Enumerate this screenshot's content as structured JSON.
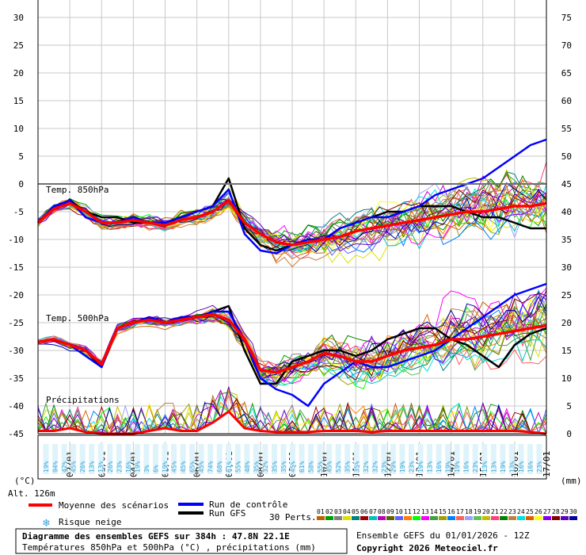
{
  "chart_data": {
    "type": "line",
    "title": "Diagramme des ensembles GEFS sur 384h : 47.8N 22.1E",
    "subtitle": "Températures 850hPa et 500hPa (°C) , précipitations (mm)",
    "run_info": "Ensemble GEFS du 01/01/2026 - 12Z",
    "copyright": "Copyright 2026 Meteociel.fr",
    "altitude": "Alt. 126m",
    "left_unit": "(°C)",
    "right_unit": "(mm)",
    "left_ticks": [
      "30",
      "25",
      "20",
      "15",
      "10",
      "5",
      "0",
      "-5",
      "-10",
      "-15",
      "-20",
      "-25",
      "-30",
      "-35",
      "-40",
      "-45"
    ],
    "right_ticks": [
      "75",
      "70",
      "65",
      "60",
      "55",
      "50",
      "45",
      "40",
      "35",
      "30",
      "25",
      "20",
      "15",
      "10",
      "5",
      "0"
    ],
    "x_ticks": [
      "02/01",
      "03/01",
      "04/01",
      "05/01",
      "06/01",
      "07/01",
      "08/01",
      "09/01",
      "10/01",
      "11/01",
      "12/01",
      "13/01",
      "14/01",
      "15/01",
      "16/01",
      "17/01"
    ],
    "panel_labels": {
      "t850": "Temp. 850hPa",
      "t500": "Temp. 500hPa",
      "precip": "Précipitations"
    },
    "legend": {
      "mean": "Moyenne des scénarios",
      "control": "Run de contrôle",
      "gfs": "Run GFS",
      "perts": "30 Perts.",
      "snow": "Risque neige"
    },
    "pert_labels": [
      "01",
      "02",
      "03",
      "04",
      "05",
      "06",
      "07",
      "08",
      "09",
      "10",
      "11",
      "12",
      "13",
      "14",
      "15",
      "16",
      "17",
      "18",
      "19",
      "20",
      "21",
      "22",
      "23",
      "24",
      "25",
      "26",
      "27",
      "28",
      "29",
      "30"
    ],
    "pert_colors": [
      "#c06000",
      "#00a000",
      "#808080",
      "#e0e000",
      "#008080",
      "#a00000",
      "#00c0c0",
      "#c000c0",
      "#606000",
      "#6060ff",
      "#ff8000",
      "#00ff00",
      "#ff00ff",
      "#40a040",
      "#a0a000",
      "#0080ff",
      "#ff6060",
      "#a0a0ff",
      "#60c060",
      "#c0c000",
      "#ff4080",
      "#008000",
      "#c08040",
      "#00e0e0",
      "#e06000",
      "#ffff00",
      "#8000ff",
      "#800000",
      "#6000c0",
      "#0000a0"
    ],
    "colors": {
      "mean": "#ff0000",
      "control": "#0000ff",
      "gfs": "#000000",
      "snow": "#3aa8d8"
    },
    "snow_risk_pct": [
      "19%",
      "94%",
      "42%",
      "45%",
      "26%",
      "13%",
      "13%",
      "26%",
      "23%",
      "16%",
      "19%",
      "3%",
      "6%",
      "19%",
      "45%",
      "45%",
      "65%",
      "45%",
      "74%",
      "68%",
      "61%",
      "55%",
      "48%",
      "35%",
      "32%",
      "35%",
      "35%",
      "45%",
      "61%",
      "58%",
      "55%",
      "45%",
      "52%",
      "35%",
      "35%",
      "32%",
      "32%",
      "23%",
      "29%",
      "19%",
      "23%",
      "19%",
      "13%",
      "16%",
      "19%",
      "19%",
      "16%",
      "23%",
      "13%",
      "13%",
      "19%",
      "13%",
      "16%",
      "16%",
      "23%"
    ],
    "mean_t850": [
      [
        0,
        -7
      ],
      [
        12,
        -4.5
      ],
      [
        24,
        -3.5
      ],
      [
        36,
        -5
      ],
      [
        48,
        -7
      ],
      [
        60,
        -7
      ],
      [
        72,
        -6.5
      ],
      [
        84,
        -7
      ],
      [
        96,
        -7.5
      ],
      [
        108,
        -6.5
      ],
      [
        120,
        -6
      ],
      [
        132,
        -5
      ],
      [
        144,
        -3
      ],
      [
        156,
        -7
      ],
      [
        168,
        -9
      ],
      [
        180,
        -10.5
      ],
      [
        192,
        -11
      ],
      [
        204,
        -10.5
      ],
      [
        216,
        -10
      ],
      [
        228,
        -9.5
      ],
      [
        240,
        -8.5
      ],
      [
        252,
        -8
      ],
      [
        264,
        -7.5
      ],
      [
        276,
        -7
      ],
      [
        288,
        -6.5
      ],
      [
        300,
        -6
      ],
      [
        312,
        -5.5
      ],
      [
        324,
        -5
      ],
      [
        336,
        -5
      ],
      [
        348,
        -4.5
      ],
      [
        360,
        -4
      ],
      [
        372,
        -4
      ],
      [
        384,
        -3.5
      ]
    ],
    "control_t850": [
      [
        0,
        -7
      ],
      [
        12,
        -4
      ],
      [
        24,
        -3
      ],
      [
        36,
        -6
      ],
      [
        48,
        -7
      ],
      [
        60,
        -7
      ],
      [
        72,
        -6
      ],
      [
        84,
        -7
      ],
      [
        96,
        -7
      ],
      [
        108,
        -6
      ],
      [
        120,
        -5
      ],
      [
        132,
        -4
      ],
      [
        144,
        -1
      ],
      [
        156,
        -9
      ],
      [
        168,
        -12
      ],
      [
        180,
        -12.5
      ],
      [
        192,
        -11
      ],
      [
        204,
        -10
      ],
      [
        216,
        -10
      ],
      [
        228,
        -8
      ],
      [
        240,
        -7
      ],
      [
        252,
        -6
      ],
      [
        264,
        -6
      ],
      [
        276,
        -5
      ],
      [
        288,
        -4
      ],
      [
        300,
        -2
      ],
      [
        312,
        -1
      ],
      [
        324,
        0
      ],
      [
        336,
        1
      ],
      [
        348,
        3
      ],
      [
        360,
        5
      ],
      [
        372,
        7
      ],
      [
        384,
        8
      ]
    ],
    "gfs_t850": [
      [
        0,
        -7
      ],
      [
        12,
        -4
      ],
      [
        24,
        -3
      ],
      [
        36,
        -5
      ],
      [
        48,
        -6
      ],
      [
        60,
        -6
      ],
      [
        72,
        -7
      ],
      [
        84,
        -7
      ],
      [
        96,
        -7
      ],
      [
        108,
        -6
      ],
      [
        120,
        -5
      ],
      [
        132,
        -4
      ],
      [
        144,
        1
      ],
      [
        156,
        -8
      ],
      [
        168,
        -11
      ],
      [
        180,
        -12
      ],
      [
        192,
        -11
      ],
      [
        204,
        -10
      ],
      [
        216,
        -10
      ],
      [
        228,
        -8
      ],
      [
        240,
        -7
      ],
      [
        252,
        -6
      ],
      [
        264,
        -5
      ],
      [
        276,
        -5
      ],
      [
        288,
        -4
      ],
      [
        300,
        -4
      ],
      [
        312,
        -4
      ],
      [
        324,
        -5
      ],
      [
        336,
        -6
      ],
      [
        348,
        -6
      ],
      [
        360,
        -7
      ],
      [
        372,
        -8
      ],
      [
        384,
        -8
      ]
    ],
    "mean_t500": [
      [
        0,
        -28.5
      ],
      [
        12,
        -28
      ],
      [
        24,
        -29
      ],
      [
        36,
        -30
      ],
      [
        48,
        -32.5
      ],
      [
        60,
        -26
      ],
      [
        72,
        -25
      ],
      [
        84,
        -24.5
      ],
      [
        96,
        -25
      ],
      [
        108,
        -24.5
      ],
      [
        120,
        -24
      ],
      [
        132,
        -23.5
      ],
      [
        144,
        -24.5
      ],
      [
        156,
        -28
      ],
      [
        168,
        -33.5
      ],
      [
        180,
        -34
      ],
      [
        192,
        -33
      ],
      [
        204,
        -32
      ],
      [
        216,
        -30.5
      ],
      [
        228,
        -31
      ],
      [
        240,
        -32
      ],
      [
        252,
        -32
      ],
      [
        264,
        -31
      ],
      [
        276,
        -30
      ],
      [
        288,
        -29.5
      ],
      [
        300,
        -29
      ],
      [
        312,
        -28
      ],
      [
        324,
        -28
      ],
      [
        336,
        -27.5
      ],
      [
        348,
        -27
      ],
      [
        360,
        -26.5
      ],
      [
        372,
        -26
      ],
      [
        384,
        -25.5
      ]
    ],
    "control_t500": [
      [
        0,
        -28.5
      ],
      [
        12,
        -28
      ],
      [
        24,
        -29
      ],
      [
        36,
        -31
      ],
      [
        48,
        -33
      ],
      [
        60,
        -26
      ],
      [
        72,
        -25
      ],
      [
        84,
        -24
      ],
      [
        96,
        -25
      ],
      [
        108,
        -24
      ],
      [
        120,
        -24
      ],
      [
        132,
        -23
      ],
      [
        144,
        -23
      ],
      [
        156,
        -28
      ],
      [
        168,
        -35
      ],
      [
        180,
        -37
      ],
      [
        192,
        -38
      ],
      [
        204,
        -40
      ],
      [
        216,
        -36
      ],
      [
        228,
        -34
      ],
      [
        240,
        -32
      ],
      [
        252,
        -33
      ],
      [
        264,
        -33
      ],
      [
        276,
        -32
      ],
      [
        288,
        -31
      ],
      [
        300,
        -30
      ],
      [
        312,
        -28
      ],
      [
        324,
        -26
      ],
      [
        336,
        -24
      ],
      [
        348,
        -22
      ],
      [
        360,
        -20
      ],
      [
        372,
        -19
      ],
      [
        384,
        -18
      ]
    ],
    "gfs_t500": [
      [
        0,
        -28.5
      ],
      [
        12,
        -28
      ],
      [
        24,
        -29
      ],
      [
        36,
        -30
      ],
      [
        48,
        -33
      ],
      [
        60,
        -26
      ],
      [
        72,
        -25
      ],
      [
        84,
        -24
      ],
      [
        96,
        -25
      ],
      [
        108,
        -24
      ],
      [
        120,
        -24
      ],
      [
        132,
        -23
      ],
      [
        144,
        -22
      ],
      [
        156,
        -30
      ],
      [
        168,
        -36
      ],
      [
        180,
        -36
      ],
      [
        192,
        -32
      ],
      [
        204,
        -31
      ],
      [
        216,
        -30
      ],
      [
        228,
        -30
      ],
      [
        240,
        -31
      ],
      [
        252,
        -30
      ],
      [
        264,
        -28
      ],
      [
        276,
        -27
      ],
      [
        288,
        -26
      ],
      [
        300,
        -26
      ],
      [
        312,
        -28
      ],
      [
        324,
        -29
      ],
      [
        336,
        -31
      ],
      [
        348,
        -33
      ],
      [
        360,
        -29
      ],
      [
        372,
        -27
      ],
      [
        384,
        -26
      ]
    ],
    "mean_precip": [
      [
        0,
        0.5
      ],
      [
        12,
        0.5
      ],
      [
        24,
        1
      ],
      [
        36,
        0.3
      ],
      [
        48,
        0
      ],
      [
        60,
        0
      ],
      [
        72,
        0
      ],
      [
        84,
        0.5
      ],
      [
        96,
        1
      ],
      [
        108,
        0.5
      ],
      [
        120,
        0.5
      ],
      [
        132,
        2
      ],
      [
        144,
        4
      ],
      [
        156,
        1
      ],
      [
        168,
        0.5
      ],
      [
        180,
        0.3
      ],
      [
        192,
        0.3
      ],
      [
        204,
        0.3
      ],
      [
        216,
        0.5
      ],
      [
        228,
        0.5
      ],
      [
        240,
        0.5
      ],
      [
        252,
        0.3
      ],
      [
        264,
        0.5
      ],
      [
        276,
        0.5
      ],
      [
        288,
        0.5
      ],
      [
        300,
        0.5
      ],
      [
        312,
        0.5
      ],
      [
        324,
        0.5
      ],
      [
        336,
        0.5
      ],
      [
        348,
        0.5
      ],
      [
        360,
        0.5
      ],
      [
        372,
        0.3
      ],
      [
        384,
        0
      ]
    ],
    "x_range_hours": [
      0,
      384
    ],
    "left_range": [
      -45,
      30
    ],
    "right_range": [
      0,
      75
    ]
  }
}
